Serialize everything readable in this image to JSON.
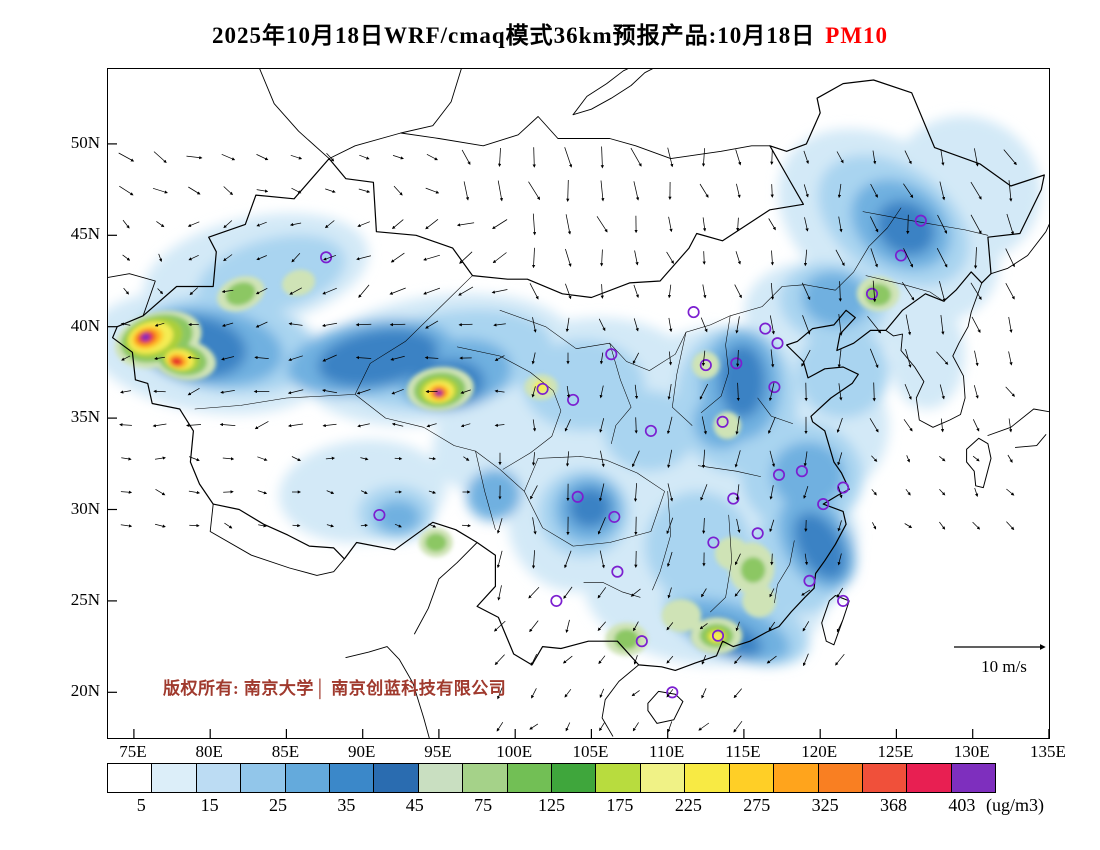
{
  "title": {
    "main": "2025年10月18日WRF/cmaq模式36km预报产品:10月18日",
    "pollutant": "PM10",
    "pollutant_color": "#ff0000"
  },
  "map": {
    "lat_ticks": [
      "50N",
      "45N",
      "40N",
      "35N",
      "30N",
      "25N",
      "20N"
    ],
    "lon_ticks": [
      "75E",
      "80E",
      "85E",
      "90E",
      "95E",
      "100E",
      "105E",
      "110E",
      "115E",
      "120E",
      "125E",
      "130E",
      "135E"
    ],
    "copyright": "版权所有: 南京大学│ 南京创蓝科技有限公司",
    "copyright_color": "#a03a2e",
    "wind_scale_label": "10 m/s",
    "city_marker_color": "#7b1fd0",
    "cities": [
      [
        87.6,
        43.8
      ],
      [
        91.1,
        29.7
      ],
      [
        101.8,
        36.6
      ],
      [
        103.8,
        36.0
      ],
      [
        106.3,
        38.5
      ],
      [
        111.7,
        40.8
      ],
      [
        116.4,
        39.9
      ],
      [
        117.2,
        39.1
      ],
      [
        114.5,
        38.0
      ],
      [
        112.5,
        37.9
      ],
      [
        123.4,
        41.8
      ],
      [
        125.3,
        43.9
      ],
      [
        126.6,
        45.8
      ],
      [
        117.0,
        36.7
      ],
      [
        113.6,
        34.8
      ],
      [
        108.9,
        34.3
      ],
      [
        118.8,
        32.1
      ],
      [
        121.5,
        31.2
      ],
      [
        117.3,
        31.9
      ],
      [
        120.2,
        30.3
      ],
      [
        114.3,
        30.6
      ],
      [
        104.1,
        30.7
      ],
      [
        106.5,
        29.6
      ],
      [
        113.0,
        28.2
      ],
      [
        115.9,
        28.7
      ],
      [
        106.7,
        26.6
      ],
      [
        102.7,
        25.0
      ],
      [
        119.3,
        26.1
      ],
      [
        113.3,
        23.1
      ],
      [
        108.3,
        22.8
      ],
      [
        110.3,
        20.0
      ],
      [
        121.5,
        25.0
      ]
    ],
    "wind_regions": [
      {
        "lon": [
          73,
          95
        ],
        "lat": [
          47,
          55
        ],
        "dx": 0.85,
        "dy": 0.4,
        "s": 0.8
      },
      {
        "lon": [
          78,
          101
        ],
        "lat": [
          41,
          47
        ],
        "dx": -0.85,
        "dy": 0.45,
        "s": 0.8
      },
      {
        "lon": [
          73,
          101
        ],
        "lat": [
          33.5,
          41
        ],
        "dx": -1,
        "dy": 0.15,
        "s": 0.7
      },
      {
        "lon": [
          73,
          99
        ],
        "lat": [
          25,
          33.5
        ],
        "dx": 0.95,
        "dy": 0.2,
        "s": 0.5
      },
      {
        "lon": [
          95,
          123
        ],
        "lat": [
          40,
          55
        ],
        "dx": 0.2,
        "dy": 1,
        "s": 1.0
      },
      {
        "lon": [
          123,
          136
        ],
        "lat": [
          34,
          55
        ],
        "dx": 0.35,
        "dy": 0.95,
        "s": 1.0
      },
      {
        "lon": [
          99,
          123
        ],
        "lat": [
          27,
          40
        ],
        "dx": -0.12,
        "dy": 1,
        "s": 0.85
      },
      {
        "lon": [
          97,
          124
        ],
        "lat": [
          17,
          27
        ],
        "dx": -0.55,
        "dy": 0.8,
        "s": 0.7
      }
    ],
    "wind_default": {
      "dx": 0.5,
      "dy": 0.6,
      "s": 0.55
    },
    "field_soft": [
      [
        83,
        43,
        7.5,
        3.0,
        -12,
        "#d3e9f7"
      ],
      [
        80,
        38.6,
        8,
        3.3,
        8,
        "#d3e9f7"
      ],
      [
        90,
        31,
        5.5,
        2.8,
        -5,
        "#d3e9f7"
      ],
      [
        95,
        38.2,
        9,
        3.5,
        -8,
        "#d3e9f7"
      ],
      [
        99.5,
        33.8,
        5,
        3,
        -15,
        "#d3e9f7"
      ],
      [
        105.5,
        36.5,
        7,
        4,
        0,
        "#d3e9f7"
      ],
      [
        113.5,
        33.5,
        8,
        6.5,
        0,
        "#d3e9f7"
      ],
      [
        124.5,
        45.5,
        8,
        4.5,
        35,
        "#d3e9f7"
      ],
      [
        129.5,
        47.5,
        5,
        4,
        25,
        "#d3e9f7"
      ],
      [
        112.5,
        25.5,
        8,
        4,
        5,
        "#d3e9f7"
      ],
      [
        117.5,
        28.5,
        5,
        3.5,
        0,
        "#d3e9f7"
      ],
      [
        104,
        29.5,
        4.5,
        4,
        0,
        "#d3e9f7"
      ],
      [
        120,
        40.5,
        5,
        3,
        10,
        "#d3e9f7"
      ],
      [
        119.5,
        34.5,
        5,
        4,
        0,
        "#d3e9f7"
      ],
      [
        127,
        38.5,
        2.5,
        3,
        0,
        "#d3e9f7"
      ],
      [
        81,
        39,
        6,
        2.6,
        8,
        "#a9d4f0"
      ],
      [
        84,
        42.8,
        5,
        2.0,
        -15,
        "#a9d4f0"
      ],
      [
        95.5,
        38.2,
        7,
        2.6,
        -10,
        "#a9d4f0"
      ],
      [
        104.5,
        36.8,
        4,
        2.5,
        0,
        "#a9d4f0"
      ],
      [
        114.5,
        36,
        4,
        4,
        0,
        "#a9d4f0"
      ],
      [
        118.8,
        31.8,
        4,
        3,
        0,
        "#a9d4f0"
      ],
      [
        114.5,
        23.8,
        5,
        2,
        20,
        "#a9d4f0"
      ],
      [
        118.8,
        27.5,
        3.2,
        3.2,
        0,
        "#a9d4f0"
      ],
      [
        124.8,
        45.8,
        5.5,
        3,
        35,
        "#a9d4f0"
      ],
      [
        120.8,
        41.3,
        3.5,
        2.2,
        10,
        "#a9d4f0"
      ],
      [
        104.5,
        29.8,
        3,
        2.4,
        0,
        "#a9d4f0"
      ],
      [
        108.8,
        34.3,
        3,
        2.2,
        0,
        "#a9d4f0"
      ],
      [
        112,
        28,
        3.5,
        3,
        0,
        "#a9d4f0"
      ],
      [
        92.2,
        29.8,
        2.5,
        1.5,
        0,
        "#a9d4f0"
      ],
      [
        121.5,
        37.5,
        3,
        2.5,
        0,
        "#a9d4f0"
      ],
      [
        80,
        38.9,
        4.8,
        2.1,
        8,
        "#6fb0e0"
      ],
      [
        90.5,
        38.3,
        5.5,
        2.0,
        -10,
        "#6fb0e0"
      ],
      [
        96,
        37.4,
        3.8,
        1.9,
        -10,
        "#6fb0e0"
      ],
      [
        114.8,
        36.8,
        2.6,
        3,
        0,
        "#6fb0e0"
      ],
      [
        114.2,
        23.4,
        4,
        1.4,
        20,
        "#6fb0e0"
      ],
      [
        119.8,
        28.2,
        2.2,
        2.8,
        -30,
        "#6fb0e0"
      ],
      [
        125.3,
        45.6,
        3.5,
        2.2,
        35,
        "#6fb0e0"
      ],
      [
        104.8,
        30,
        2.2,
        1.8,
        0,
        "#6fb0e0"
      ],
      [
        98.6,
        30.8,
        1.8,
        1.4,
        -20,
        "#6fb0e0"
      ],
      [
        119.2,
        31.9,
        2.4,
        1.8,
        0,
        "#6fb0e0"
      ],
      [
        121,
        41.5,
        2.2,
        1.5,
        10,
        "#6fb0e0"
      ],
      [
        113.5,
        34.8,
        1.8,
        1.5,
        0,
        "#6fb0e0"
      ],
      [
        92.3,
        29.6,
        1.5,
        0.9,
        0,
        "#6fb0e0"
      ],
      [
        79,
        38.9,
        3.4,
        1.7,
        8,
        "#3b82c4"
      ],
      [
        91,
        38.3,
        4,
        1.5,
        -10,
        "#3b82c4"
      ],
      [
        95.6,
        36.9,
        2.4,
        1.3,
        -5,
        "#3b82c4"
      ],
      [
        114.9,
        37,
        1.5,
        2,
        0,
        "#3b82c4"
      ],
      [
        113.9,
        23,
        2.4,
        0.9,
        20,
        "#3b82c4"
      ],
      [
        120,
        28,
        1.4,
        2,
        -30,
        "#3b82c4"
      ],
      [
        125.6,
        45.4,
        2,
        1.4,
        35,
        "#3b82c4"
      ],
      [
        104.9,
        30.1,
        1.4,
        1.1,
        0,
        "#3b82c4"
      ]
    ],
    "field_core": [
      [
        76.6,
        39.3,
        2.9,
        1.5,
        -15,
        "#cfe3b6"
      ],
      [
        78.3,
        38.2,
        2.1,
        1.1,
        10,
        "#cfe3b6"
      ],
      [
        95.1,
        36.6,
        2.2,
        1.2,
        -5,
        "#cfe3b6"
      ],
      [
        82,
        41.8,
        1.6,
        0.9,
        -20,
        "#cfe3b6"
      ],
      [
        85.8,
        42.4,
        1.1,
        0.7,
        -15,
        "#cfe3b6"
      ],
      [
        94.8,
        28.2,
        1.1,
        0.8,
        0,
        "#cfe3b6"
      ],
      [
        101.7,
        36.7,
        1.1,
        0.7,
        0,
        "#cfe3b6"
      ],
      [
        107.3,
        22.9,
        1.4,
        0.9,
        0,
        "#cfe3b6"
      ],
      [
        110.9,
        24.2,
        1.3,
        0.9,
        0,
        "#cfe3b6"
      ],
      [
        113.2,
        23.1,
        1.7,
        1.0,
        0,
        "#cfe3b6"
      ],
      [
        115.5,
        26.8,
        1.5,
        1.4,
        0,
        "#cfe3b6"
      ],
      [
        114.2,
        27.6,
        1.1,
        0.9,
        0,
        "#cfe3b6"
      ],
      [
        116,
        25,
        1.1,
        0.9,
        0,
        "#cfe3b6"
      ],
      [
        123.8,
        41.8,
        1.4,
        0.95,
        0,
        "#cfe3b6"
      ],
      [
        112.5,
        37.9,
        0.9,
        0.75,
        0,
        "#cfe3b6"
      ],
      [
        113.9,
        34.6,
        0.9,
        0.75,
        0,
        "#cfe3b6"
      ],
      [
        76.5,
        39.35,
        2.4,
        1.25,
        -15,
        "#8cc763"
      ],
      [
        78.2,
        38.2,
        1.6,
        0.85,
        10,
        "#8cc763"
      ],
      [
        95.05,
        36.55,
        1.7,
        0.95,
        -5,
        "#8cc763"
      ],
      [
        82,
        41.8,
        1.0,
        0.6,
        -20,
        "#8cc763"
      ],
      [
        94.8,
        28.2,
        0.7,
        0.5,
        0,
        "#8cc763"
      ],
      [
        107.3,
        22.9,
        0.8,
        0.55,
        0,
        "#8cc763"
      ],
      [
        113.2,
        23.1,
        1.1,
        0.65,
        0,
        "#8cc763"
      ],
      [
        115.6,
        26.7,
        0.8,
        0.7,
        0,
        "#8cc763"
      ],
      [
        123.8,
        41.75,
        0.85,
        0.6,
        0,
        "#8cc763"
      ],
      [
        76.3,
        39.4,
        1.9,
        1.05,
        -15,
        "#aacf3a"
      ],
      [
        78.1,
        38.2,
        1.2,
        0.65,
        10,
        "#aacf3a"
      ],
      [
        95,
        36.5,
        1.3,
        0.75,
        -5,
        "#aacf3a"
      ],
      [
        113.2,
        23.1,
        0.7,
        0.45,
        0,
        "#aacf3a"
      ],
      [
        76.1,
        39.4,
        1.5,
        0.85,
        -15,
        "#f4ec52"
      ],
      [
        78,
        38.2,
        0.95,
        0.55,
        10,
        "#f4ec52"
      ],
      [
        95,
        36.45,
        1.0,
        0.6,
        -5,
        "#f4ec52"
      ],
      [
        113.2,
        23.05,
        0.5,
        0.3,
        0,
        "#f4ec52"
      ],
      [
        101.7,
        36.7,
        0.5,
        0.35,
        0,
        "#f4ec52"
      ],
      [
        75.9,
        39.4,
        1.05,
        0.6,
        -15,
        "#ffc929"
      ],
      [
        77.9,
        38.15,
        0.7,
        0.4,
        10,
        "#ffc929"
      ],
      [
        95,
        36.4,
        0.7,
        0.45,
        0,
        "#ffc929"
      ],
      [
        75.85,
        39.4,
        0.8,
        0.45,
        -15,
        "#fb9220"
      ],
      [
        77.85,
        38.1,
        0.5,
        0.3,
        10,
        "#fb9220"
      ],
      [
        95,
        36.4,
        0.5,
        0.33,
        0,
        "#fb9220"
      ],
      [
        75.8,
        39.42,
        0.55,
        0.33,
        -15,
        "#e8302b"
      ],
      [
        77.8,
        38.1,
        0.36,
        0.22,
        10,
        "#e8302b"
      ],
      [
        95,
        36.38,
        0.36,
        0.24,
        0,
        "#e8302b"
      ],
      [
        75.78,
        39.43,
        0.3,
        0.2,
        -15,
        "#7c2fbe"
      ],
      [
        95,
        36.37,
        0.2,
        0.15,
        0,
        "#7c2fbe"
      ]
    ]
  },
  "colorbar": {
    "unit": "(ug/m3)",
    "labels": [
      "5",
      "15",
      "25",
      "35",
      "45",
      "75",
      "125",
      "175",
      "225",
      "275",
      "325",
      "368",
      "403"
    ],
    "colors": [
      "#ffffff",
      "#dceef9",
      "#bcdcf3",
      "#92c6ea",
      "#64aadc",
      "#3b88c9",
      "#2a6cb0",
      "#c9dfc1",
      "#a5d289",
      "#72bf55",
      "#3fa63c",
      "#b8dc3e",
      "#f0f286",
      "#f8ea44",
      "#ffcf26",
      "#ffa41c",
      "#f97f22",
      "#f0503a",
      "#e81f52",
      "#7e2fbe"
    ]
  }
}
